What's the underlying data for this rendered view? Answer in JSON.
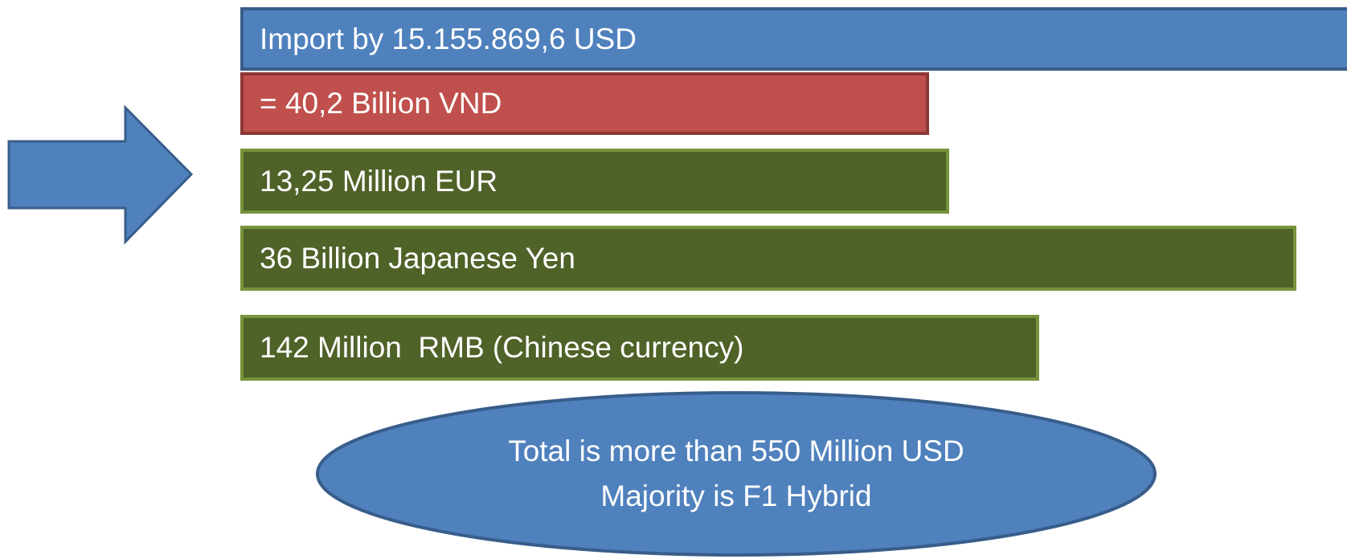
{
  "boxes": [
    {
      "text": "Import by 15.155.869,6 USD"
    },
    {
      "text": "= 40,2 Billion VND"
    },
    {
      "text": "13,25 Million EUR"
    },
    {
      "text": "36 Billion Japanese Yen"
    },
    {
      "text": "142 Million  RMB (Chinese currency)"
    }
  ],
  "summary": {
    "lines": [
      "Total is more than 550 Million USD",
      "Majority is F1 Hybrid"
    ]
  }
}
